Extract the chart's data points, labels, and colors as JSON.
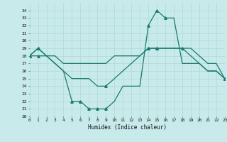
{
  "xlabel": "Humidex (Indice chaleur)",
  "background_color": "#c8eaea",
  "line_color": "#1a7a6e",
  "grid_color": "#b0d8d8",
  "ylim": [
    20,
    35
  ],
  "xlim": [
    0,
    23
  ],
  "yticks": [
    20,
    21,
    22,
    23,
    24,
    25,
    26,
    27,
    28,
    29,
    30,
    31,
    32,
    33,
    34
  ],
  "xticks": [
    0,
    1,
    2,
    3,
    4,
    5,
    6,
    7,
    8,
    9,
    10,
    11,
    12,
    13,
    14,
    15,
    16,
    17,
    18,
    19,
    20,
    21,
    22,
    23
  ],
  "line_top": [
    28,
    29,
    28,
    28,
    27,
    27,
    27,
    27,
    27,
    27,
    28,
    28,
    28,
    28,
    29,
    29,
    29,
    29,
    29,
    29,
    28,
    27,
    27,
    25
  ],
  "line_mid": [
    28,
    28,
    28,
    27,
    26,
    25,
    25,
    25,
    24,
    24,
    25,
    26,
    27,
    28,
    29,
    29,
    29,
    29,
    29,
    28,
    27,
    26,
    26,
    25
  ],
  "line_bot": [
    28,
    29,
    28,
    27,
    26,
    22,
    22,
    21,
    21,
    21,
    22,
    24,
    24,
    24,
    32,
    34,
    33,
    33,
    27,
    27,
    27,
    26,
    26,
    25
  ],
  "markers_top": [
    0,
    1,
    14,
    15,
    23
  ],
  "markers_mid": [
    0,
    1,
    9,
    14,
    15,
    18,
    23
  ],
  "markers_bot": [
    0,
    1,
    5,
    6,
    7,
    8,
    9,
    14,
    15,
    16,
    23
  ],
  "marker_style": "^",
  "marker_size": 2.5,
  "linewidth": 0.9
}
